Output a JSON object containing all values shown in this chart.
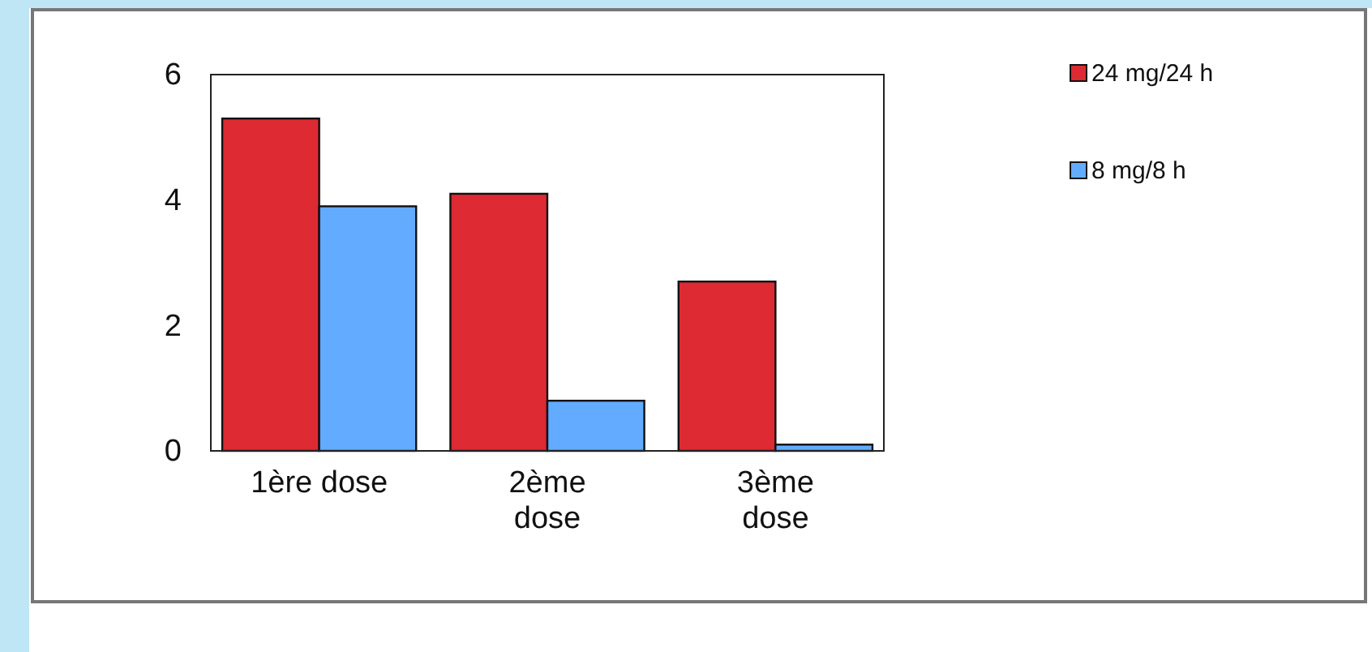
{
  "chart_data": {
    "type": "bar",
    "categories": [
      "1ère dose",
      "2ème dose",
      "3ème dose"
    ],
    "series": [
      {
        "name": "24 mg/24 h",
        "color": "#dd2a33",
        "values": [
          5.3,
          4.1,
          2.7
        ]
      },
      {
        "name": "8 mg/8 h",
        "color": "#62abff",
        "values": [
          3.9,
          0.8,
          0.1
        ]
      }
    ],
    "ylim": [
      0,
      6
    ],
    "yticks": [
      0,
      2,
      4,
      6
    ],
    "grid": false,
    "legend": "top right"
  }
}
